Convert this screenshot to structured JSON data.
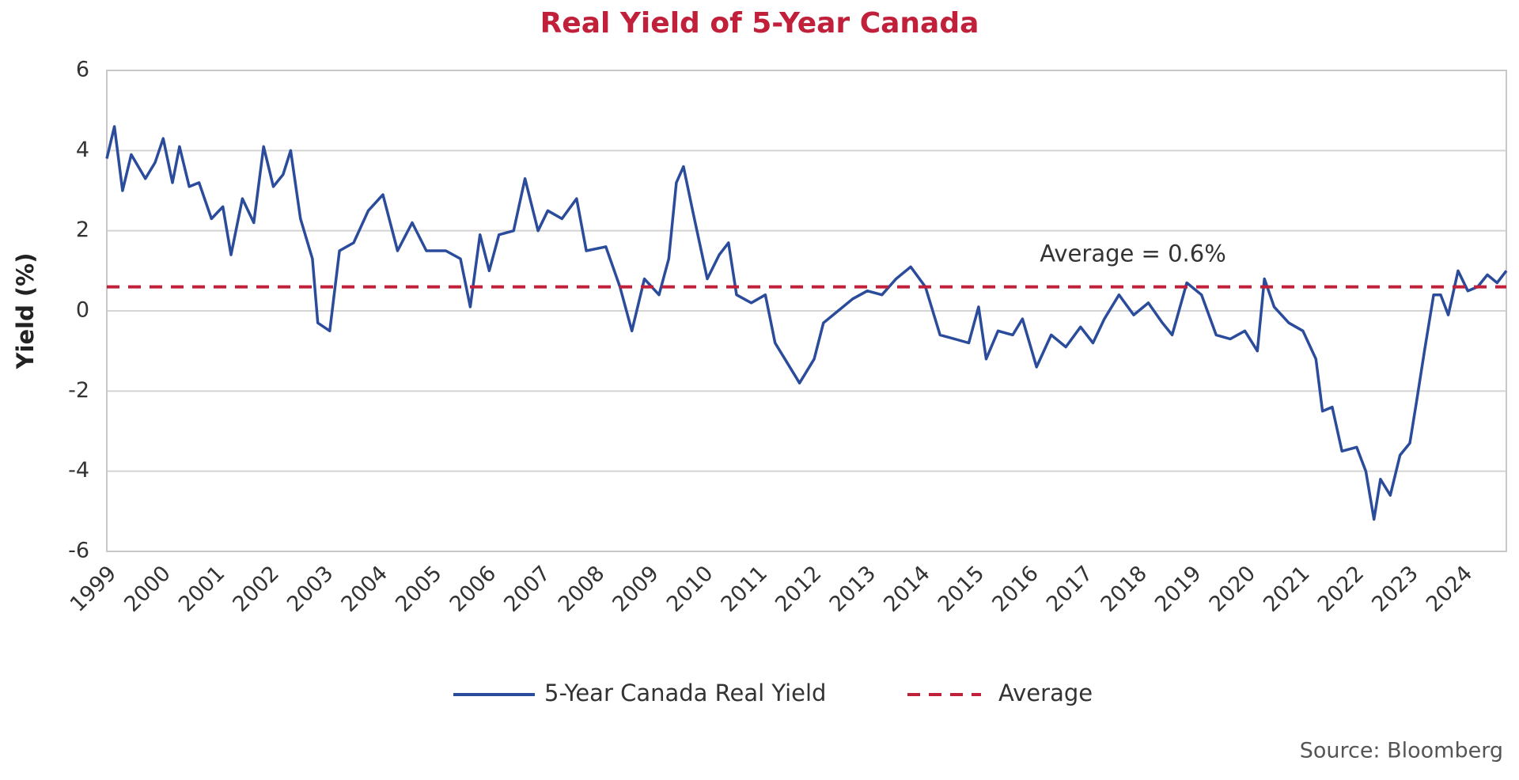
{
  "chart_data": {
    "type": "line",
    "title": "Real Yield of 5-Year Canada",
    "y_label": "Yield (%)",
    "source": "Source: Bloomberg",
    "x": [
      1999.0,
      1999.14,
      1999.29,
      1999.45,
      1999.71,
      1999.89,
      2000.04,
      2000.21,
      2000.34,
      2000.52,
      2000.7,
      2000.93,
      2001.14,
      2001.29,
      2001.5,
      2001.71,
      2001.89,
      2002.07,
      2002.25,
      2002.39,
      2002.57,
      2002.79,
      2002.89,
      2003.11,
      2003.29,
      2003.55,
      2003.82,
      2004.09,
      2004.36,
      2004.63,
      2004.89,
      2005.25,
      2005.52,
      2005.7,
      2005.88,
      2006.05,
      2006.23,
      2006.5,
      2006.71,
      2006.95,
      2007.13,
      2007.39,
      2007.66,
      2007.84,
      2008.2,
      2008.46,
      2008.68,
      2008.91,
      2009.18,
      2009.36,
      2009.5,
      2009.63,
      2009.8,
      2010.07,
      2010.29,
      2010.46,
      2010.61,
      2010.88,
      2011.14,
      2011.32,
      2011.5,
      2011.77,
      2012.04,
      2012.21,
      2012.48,
      2012.75,
      2013.02,
      2013.29,
      2013.55,
      2013.82,
      2014.09,
      2014.36,
      2014.63,
      2014.89,
      2015.07,
      2015.21,
      2015.43,
      2015.7,
      2015.88,
      2016.14,
      2016.41,
      2016.68,
      2016.95,
      2017.18,
      2017.39,
      2017.66,
      2017.93,
      2018.2,
      2018.46,
      2018.64,
      2018.91,
      2019.18,
      2019.45,
      2019.71,
      2019.98,
      2020.21,
      2020.34,
      2020.52,
      2020.79,
      2021.05,
      2021.29,
      2021.41,
      2021.59,
      2021.77,
      2022.04,
      2022.21,
      2022.36,
      2022.48,
      2022.66,
      2022.84,
      2023.02,
      2023.14,
      2023.29,
      2023.46,
      2023.59,
      2023.73,
      2023.91,
      2024.09,
      2024.27,
      2024.45,
      2024.63,
      2024.8
    ],
    "series": [
      {
        "name": "5-Year Canada Real Yield",
        "color": "#2b4b9b",
        "values": [
          3.8,
          4.6,
          3.0,
          3.9,
          3.3,
          3.7,
          4.3,
          3.2,
          4.1,
          3.1,
          3.2,
          2.3,
          2.6,
          1.4,
          2.8,
          2.2,
          4.1,
          3.1,
          3.4,
          4.0,
          2.3,
          1.3,
          -0.3,
          -0.5,
          1.5,
          1.7,
          2.5,
          2.9,
          1.5,
          2.2,
          1.5,
          1.5,
          1.3,
          0.1,
          1.9,
          1.0,
          1.9,
          2.0,
          3.3,
          2.0,
          2.5,
          2.3,
          2.8,
          1.5,
          1.6,
          0.6,
          -0.5,
          0.8,
          0.4,
          1.3,
          3.2,
          3.6,
          2.5,
          0.8,
          1.4,
          1.7,
          0.4,
          0.2,
          0.4,
          -0.8,
          -1.2,
          -1.8,
          -1.2,
          -0.3,
          0.0,
          0.3,
          0.5,
          0.4,
          0.8,
          1.1,
          0.6,
          -0.6,
          -0.7,
          -0.8,
          0.1,
          -1.2,
          -0.5,
          -0.6,
          -0.2,
          -1.4,
          -0.6,
          -0.9,
          -0.4,
          -0.8,
          -0.2,
          0.4,
          -0.1,
          0.2,
          -0.3,
          -0.6,
          0.7,
          0.4,
          -0.6,
          -0.7,
          -0.5,
          -1.0,
          0.8,
          0.1,
          -0.3,
          -0.5,
          -1.2,
          -2.5,
          -2.4,
          -3.5,
          -3.4,
          -4.0,
          -5.2,
          -4.2,
          -4.6,
          -3.6,
          -3.3,
          -2.3,
          -1.0,
          0.4,
          0.4,
          -0.1,
          1.0,
          0.5,
          0.6,
          0.9,
          0.7,
          1.0
        ]
      }
    ],
    "average": {
      "name": "Average",
      "value": 0.6,
      "color": "#c1203b",
      "label": "Average = 0.6%"
    },
    "xlim": [
      1999,
      2024.8
    ],
    "xticks": [
      1999,
      2000,
      2001,
      2002,
      2003,
      2004,
      2005,
      2006,
      2007,
      2008,
      2009,
      2010,
      2011,
      2012,
      2013,
      2014,
      2015,
      2016,
      2017,
      2018,
      2019,
      2020,
      2021,
      2022,
      2023,
      2024
    ],
    "ylim": [
      -6,
      6
    ],
    "yticks": [
      -6,
      -4,
      -2,
      0,
      2,
      4,
      6
    ],
    "grid": true
  }
}
